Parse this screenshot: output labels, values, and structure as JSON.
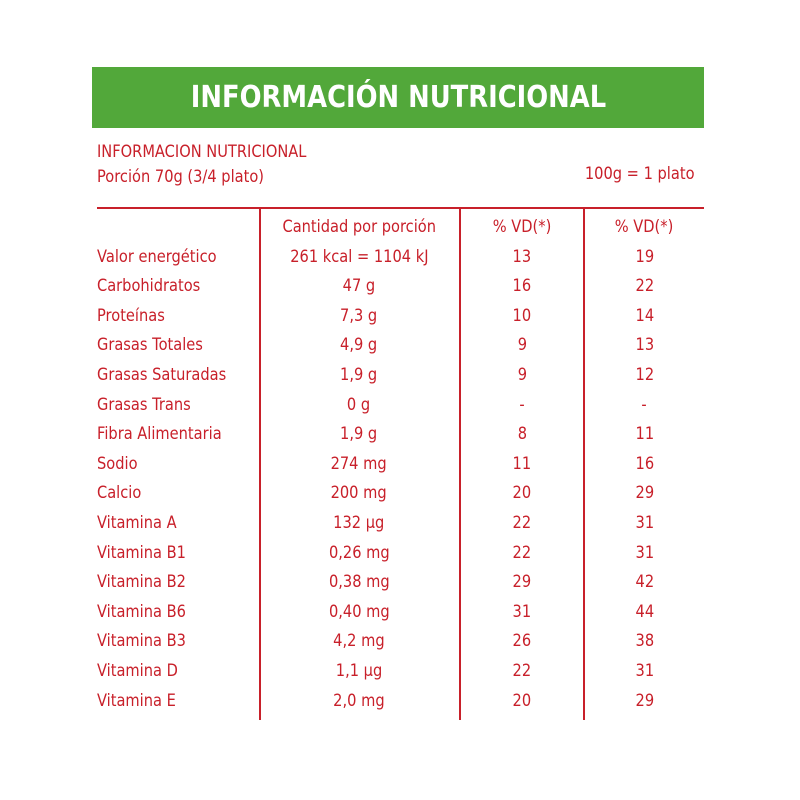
{
  "banner": {
    "title": "INFORMACIÓN NUTRICIONAL"
  },
  "header": {
    "line1": "INFORMACION NUTRICIONAL",
    "line2": "Porción 70g (3/4 plato)",
    "right": "100g = 1 plato"
  },
  "columns": {
    "name": "",
    "qty": "Cantidad por porción",
    "vd1": "% VD(*)",
    "vd2": "% VD(*)"
  },
  "rows": [
    {
      "name": "Valor energético",
      "qty": "261 kcal = 1104 kJ",
      "vd1": "13",
      "vd2": "19"
    },
    {
      "name": "Carbohidratos",
      "qty": "47 g",
      "vd1": "16",
      "vd2": "22"
    },
    {
      "name": "Proteínas",
      "qty": "7,3 g",
      "vd1": "10",
      "vd2": "14"
    },
    {
      "name": "Grasas Totales",
      "qty": "4,9 g",
      "vd1": "9",
      "vd2": "13"
    },
    {
      "name": "Grasas Saturadas",
      "qty": "1,9 g",
      "vd1": "9",
      "vd2": "12"
    },
    {
      "name": "Grasas Trans",
      "qty": "0 g",
      "vd1": "-",
      "vd2": "-"
    },
    {
      "name": "Fibra Alimentaria",
      "qty": "1,9 g",
      "vd1": "8",
      "vd2": "11"
    },
    {
      "name": "Sodio",
      "qty": "274 mg",
      "vd1": "11",
      "vd2": "16"
    },
    {
      "name": "Calcio",
      "qty": "200 mg",
      "vd1": "20",
      "vd2": "29"
    },
    {
      "name": "Vitamina A",
      "qty": "132 µg",
      "vd1": "22",
      "vd2": "31"
    },
    {
      "name": "Vitamina B1",
      "qty": "0,26 mg",
      "vd1": "22",
      "vd2": "31"
    },
    {
      "name": "Vitamina B2",
      "qty": "0,38 mg",
      "vd1": "29",
      "vd2": "42"
    },
    {
      "name": "Vitamina B6",
      "qty": "0,40 mg",
      "vd1": "31",
      "vd2": "44"
    },
    {
      "name": "Vitamina B3",
      "qty": "4,2 mg",
      "vd1": "26",
      "vd2": "38"
    },
    {
      "name": "Vitamina D",
      "qty": "1,1 µg",
      "vd1": "22",
      "vd2": "31"
    },
    {
      "name": "Vitamina E",
      "qty": "2,0 mg",
      "vd1": "20",
      "vd2": "29"
    }
  ],
  "colors": {
    "banner": "#52a83a",
    "text": "#c8202a",
    "banner_text": "#ffffff"
  }
}
